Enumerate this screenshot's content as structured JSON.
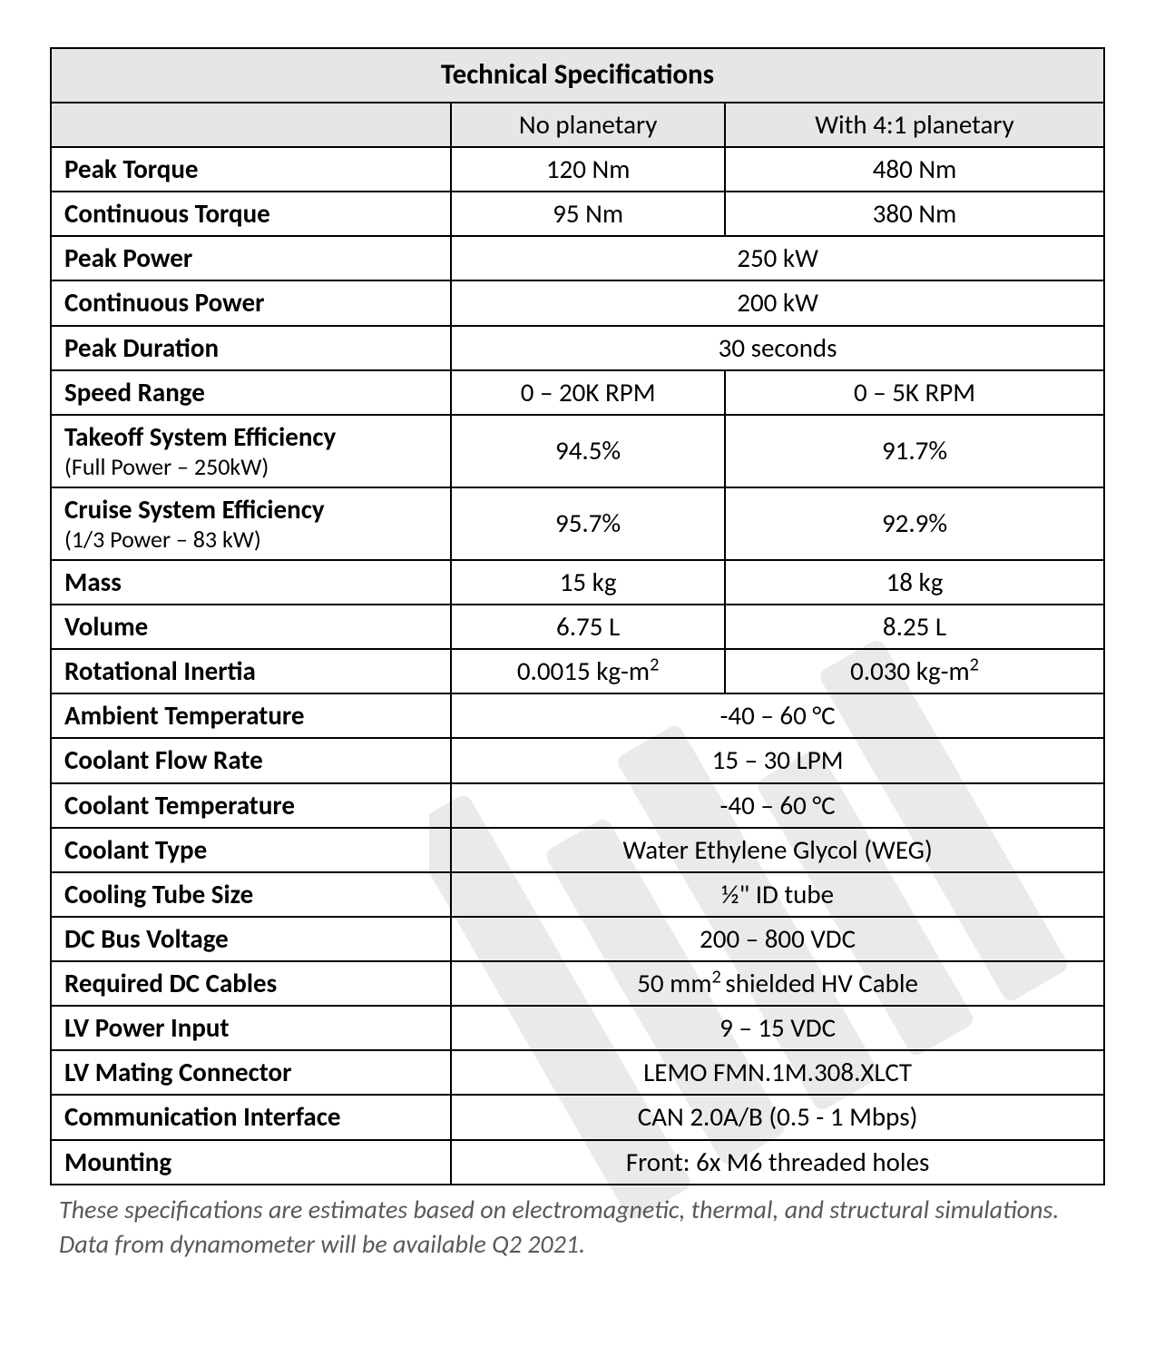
{
  "table": {
    "title": "Technical Specifications",
    "col_labels": [
      "No planetary",
      "With 4:1 planetary"
    ],
    "rows": [
      {
        "label": "Peak Torque",
        "v1": "120 Nm",
        "v2": "480 Nm"
      },
      {
        "label": "Continuous Torque",
        "v1": "95 Nm",
        "v2": "380 Nm"
      },
      {
        "label": "Peak Power",
        "span": "250 kW"
      },
      {
        "label": "Continuous Power",
        "span": "200 kW"
      },
      {
        "label": "Peak Duration",
        "span": "30 seconds"
      },
      {
        "label": "Speed Range",
        "v1": "0 – 20K RPM",
        "v2": "0 – 5K RPM"
      },
      {
        "label": "Takeoff System Efficiency",
        "sub": "(Full Power – 250kW)",
        "v1": "94.5%",
        "v2": "91.7%"
      },
      {
        "label": "Cruise System Efficiency",
        "sub": "(1/3 Power – 83 kW)",
        "v1": "95.7%",
        "v2": "92.9%"
      },
      {
        "label": "Mass",
        "v1": "15 kg",
        "v2": "18 kg"
      },
      {
        "label": "Volume",
        "v1": "6.75 L",
        "v2": "8.25 L"
      },
      {
        "label": "Rotational Inertia",
        "v1_html": "0.0015 kg-m<sup>2</sup>",
        "v2_html": "0.030 kg-m<sup>2</sup>"
      },
      {
        "label": "Ambient Temperature",
        "span": "-40 – 60 °C"
      },
      {
        "label": "Coolant Flow Rate",
        "span": "15 – 30 LPM"
      },
      {
        "label": "Coolant Temperature",
        "span": "-40 – 60 °C"
      },
      {
        "label": "Coolant Type",
        "span": "Water Ethylene Glycol (WEG)"
      },
      {
        "label": "Cooling Tube Size",
        "span": "½\" ID tube"
      },
      {
        "label": "DC Bus Voltage",
        "span": "200 – 800 VDC"
      },
      {
        "label": "Required DC Cables",
        "span_html": "50 mm<sup>2 </sup>shielded HV Cable"
      },
      {
        "label": "LV Power Input",
        "span": "9 – 15 VDC"
      },
      {
        "label": "LV Mating Connector",
        "span": "LEMO FMN.1M.308.XLCT"
      },
      {
        "label": "Communication Interface",
        "span": "CAN 2.0A/B (0.5 - 1 Mbps)"
      },
      {
        "label": "Mounting",
        "span": "Front: 6x M6 threaded holes"
      }
    ],
    "colors": {
      "header_bg": "#e6e6e6",
      "border": "#000000",
      "text": "#000000",
      "footnote_text": "#595959",
      "background": "#ffffff"
    },
    "column_widths_pct": [
      38,
      26,
      36
    ],
    "font_sizes_pt": {
      "title": 31,
      "body": 29,
      "sub": 26,
      "footnote": 28
    }
  },
  "footnote": "These specifications are estimates based on electromagnetic, thermal, and structural simulations. Data from dynamometer will be available Q2 2021."
}
